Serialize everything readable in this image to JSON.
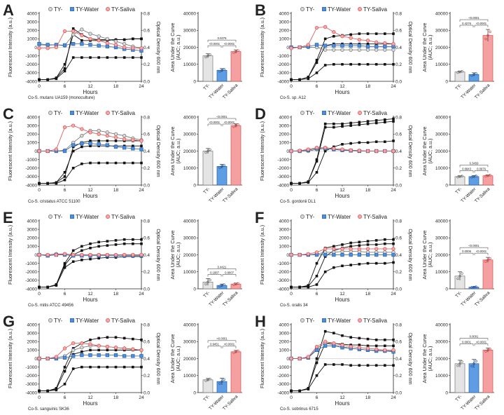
{
  "legend": [
    "TY-",
    "TY-Water",
    "TY-Saliva"
  ],
  "colors": {
    "ty_minus_fill": "#d9d9d9",
    "ty_minus_stroke": "#6b6b6b",
    "water_fill": "#4a8fe0",
    "water_stroke": "#2b5fa6",
    "saliva_fill": "#f5a6a6",
    "saliva_stroke": "#d65050",
    "od": "#111111",
    "bar_ty_minus": "#e4e4e4",
    "bar_water": "#5e9de3",
    "bar_saliva": "#f4a0a0"
  },
  "axes": {
    "left_ylabel": "Fluorescent Intensity (a.u.)",
    "right_ylabel": "Optical Density 600 nm",
    "xlabel": "Hours",
    "bar_ylabel_line1": "Area Under the Curve",
    "bar_ylabel_line2": "(AUC; a.u.)",
    "left_ticks": [
      "4000",
      "3000",
      "2000",
      "1000",
      "0",
      "-1000",
      "-2000",
      "-3000",
      "-4000"
    ],
    "right_ticks": [
      "0.8",
      "0.6",
      "0.4",
      "0.2",
      "0.0"
    ],
    "x_ticks": [
      "0",
      "6",
      "12",
      "18",
      "24"
    ],
    "bar_ticks": [
      "40000",
      "30000",
      "20000",
      "10000",
      "0"
    ],
    "bar_categories": [
      "TY-",
      "TY-Water",
      "TY-Saliva"
    ]
  },
  "chart_data": [
    {
      "panel": "A",
      "caption": "Co-S. mutans UA159 (monoculture)",
      "type": "line+bar",
      "hours": [
        0,
        2,
        4,
        6,
        8,
        10,
        12,
        14,
        16,
        18,
        20,
        22,
        24
      ],
      "fluorescence": {
        "TY-": [
          300,
          250,
          300,
          200,
          1500,
          2100,
          1600,
          1300,
          1000,
          700,
          400,
          100,
          -100
        ],
        "TY-Water": [
          400,
          300,
          300,
          250,
          400,
          400,
          300,
          200,
          100,
          0,
          -200,
          -300,
          -400
        ],
        "TY-Saliva": [
          -100,
          -100,
          0,
          1900,
          1900,
          1400,
          1000,
          800,
          500,
          300,
          0,
          -100,
          -100
        ]
      },
      "od600": {
        "TY-": [
          0.02,
          0.02,
          0.04,
          0.15,
          0.62,
          0.55,
          0.5,
          0.49,
          0.49,
          0.49,
          0.49,
          0.5,
          0.5
        ],
        "TY-Water": [
          0.02,
          0.02,
          0.03,
          0.12,
          0.28,
          0.28,
          0.28,
          0.28,
          0.28,
          0.28,
          0.28,
          0.28,
          0.28
        ],
        "TY-Saliva": [
          0.02,
          0.02,
          0.04,
          0.2,
          0.55,
          0.48,
          0.48,
          0.48,
          0.48,
          0.49,
          0.49,
          0.5,
          0.5
        ]
      },
      "auc": [
        15000,
        6500,
        17500
      ],
      "auc_sd": [
        1200,
        1000,
        1000
      ],
      "pvalues": {
        "ty_vs_water": "<0.0001",
        "water_vs_saliva": "<0.0001",
        "ty_vs_saliva": "0.0376"
      }
    },
    {
      "panel": "B",
      "caption": "Co-S. sp. A12",
      "type": "line+bar",
      "hours": [
        0,
        2,
        4,
        6,
        8,
        10,
        12,
        14,
        16,
        18,
        20,
        22,
        24
      ],
      "fluorescence": {
        "TY-": [
          0,
          0,
          0,
          0,
          -300,
          -300,
          -300,
          -300,
          -300,
          -300,
          -300,
          -300,
          -300
        ],
        "TY-Water": [
          0,
          0,
          100,
          300,
          200,
          200,
          200,
          200,
          200,
          100,
          100,
          100,
          100
        ],
        "TY-Saliva": [
          -100,
          0,
          300,
          2300,
          2400,
          1800,
          1300,
          1100,
          900,
          800,
          600,
          500,
          400
        ]
      },
      "od600": {
        "TY-": [
          0.02,
          0.02,
          0.05,
          0.25,
          0.5,
          0.53,
          0.54,
          0.55,
          0.56,
          0.56,
          0.56,
          0.56,
          0.56
        ],
        "TY-Water": [
          0.02,
          0.02,
          0.05,
          0.22,
          0.42,
          0.44,
          0.44,
          0.44,
          0.44,
          0.44,
          0.44,
          0.44,
          0.44
        ],
        "TY-Saliva": [
          0.02,
          0.02,
          0.03,
          0.1,
          0.19,
          0.2,
          0.2,
          0.2,
          0.2,
          0.2,
          0.2,
          0.2,
          0.2
        ]
      },
      "auc": [
        5500,
        4000,
        27000
      ],
      "auc_sd": [
        600,
        1000,
        3500
      ],
      "pvalues": {
        "ty_vs_water": "0.4276",
        "water_vs_saliva": "<0.0001",
        "ty_vs_saliva": "<0.0001"
      }
    },
    {
      "panel": "C",
      "caption": "Co-S. cristatus ATCC 51100",
      "type": "line+bar",
      "hours": [
        0,
        2,
        4,
        6,
        8,
        10,
        12,
        14,
        16,
        18,
        20,
        22,
        24
      ],
      "fluorescence": {
        "TY-": [
          0,
          0,
          0,
          100,
          1000,
          1800,
          2400,
          2400,
          2200,
          2000,
          1800,
          1500,
          1300
        ],
        "TY-Water": [
          0,
          0,
          0,
          0,
          700,
          900,
          900,
          800,
          700,
          500,
          400,
          300,
          200
        ],
        "TY-Saliva": [
          0,
          0,
          200,
          2800,
          3000,
          2600,
          2200,
          2000,
          1800,
          1600,
          1400,
          1300,
          1200
        ]
      },
      "od600": {
        "TY-": [
          0.02,
          0.02,
          0.03,
          0.1,
          0.45,
          0.5,
          0.52,
          0.52,
          0.52,
          0.52,
          0.52,
          0.52,
          0.52
        ],
        "TY-Water": [
          0.02,
          0.02,
          0.03,
          0.15,
          0.4,
          0.45,
          0.46,
          0.46,
          0.46,
          0.46,
          0.46,
          0.46,
          0.46
        ],
        "TY-Saliva": [
          0.02,
          0.02,
          0.02,
          0.06,
          0.2,
          0.25,
          0.26,
          0.26,
          0.26,
          0.26,
          0.26,
          0.26,
          0.26
        ]
      },
      "auc": [
        20000,
        11000,
        35000
      ],
      "auc_sd": [
        1500,
        1200,
        1000
      ],
      "pvalues": {
        "ty_vs_water": "<0.0001",
        "water_vs_saliva": "<0.0001",
        "ty_vs_saliva": "<0.0001"
      }
    },
    {
      "panel": "D",
      "caption": "Co-S. gordonii DL1",
      "type": "line+bar",
      "hours": [
        0,
        2,
        4,
        6,
        8,
        10,
        12,
        14,
        16,
        18,
        20,
        22,
        24
      ],
      "fluorescence": {
        "TY-": [
          0,
          0,
          0,
          200,
          300,
          200,
          100,
          100,
          50,
          0,
          0,
          0,
          0
        ],
        "TY-Water": [
          0,
          0,
          100,
          300,
          300,
          200,
          100,
          50,
          0,
          0,
          0,
          0,
          0
        ],
        "TY-Saliva": [
          0,
          50,
          200,
          400,
          400,
          300,
          200,
          100,
          50,
          0,
          0,
          0,
          0
        ]
      },
      "od600": {
        "TY-": [
          0.02,
          0.02,
          0.04,
          0.3,
          0.72,
          0.72,
          0.72,
          0.73,
          0.74,
          0.75,
          0.76,
          0.77,
          0.78
        ],
        "TY-Water": [
          0.02,
          0.02,
          0.04,
          0.28,
          0.68,
          0.68,
          0.69,
          0.7,
          0.71,
          0.72,
          0.73,
          0.74,
          0.75
        ],
        "TY-Saliva": [
          0.02,
          0.02,
          0.03,
          0.15,
          0.4,
          0.45,
          0.48,
          0.49,
          0.5,
          0.5,
          0.51,
          0.51,
          0.52
        ]
      },
      "auc": [
        5000,
        5000,
        5500
      ],
      "auc_sd": [
        500,
        600,
        500
      ],
      "pvalues": {
        "ty_vs_water": "0.6843",
        "water_vs_saliva": "0.0976",
        "ty_vs_saliva": "0.3459"
      }
    },
    {
      "panel": "E",
      "caption": "Co-S. mitis ATCC 49456",
      "type": "line+bar",
      "hours": [
        0,
        2,
        4,
        6,
        8,
        10,
        12,
        14,
        16,
        18,
        20,
        22,
        24
      ],
      "fluorescence": {
        "TY-": [
          0,
          0,
          100,
          100,
          0,
          0,
          0,
          0,
          0,
          0,
          0,
          0,
          0
        ],
        "TY-Water": [
          0,
          -100,
          0,
          0,
          -100,
          -100,
          -100,
          -100,
          -100,
          -100,
          -100,
          -100,
          -100
        ],
        "TY-Saliva": [
          0,
          0,
          0,
          100,
          0,
          0,
          0,
          0,
          0,
          0,
          0,
          0,
          0
        ]
      },
      "od600": {
        "TY-": [
          0.02,
          0.02,
          0.05,
          0.3,
          0.45,
          0.5,
          0.53,
          0.55,
          0.56,
          0.57,
          0.58,
          0.58,
          0.58
        ],
        "TY-Water": [
          0.02,
          0.02,
          0.05,
          0.28,
          0.4,
          0.45,
          0.48,
          0.5,
          0.51,
          0.52,
          0.53,
          0.53,
          0.53
        ],
        "TY-Saliva": [
          0.02,
          0.02,
          0.04,
          0.25,
          0.32,
          0.34,
          0.35,
          0.36,
          0.37,
          0.37,
          0.38,
          0.38,
          0.38
        ]
      },
      "auc": [
        4000,
        2000,
        2800
      ],
      "auc_sd": [
        2000,
        800,
        600
      ],
      "pvalues": {
        "ty_vs_water": "0.1887",
        "water_vs_saliva": "0.8007",
        "ty_vs_saliva": "0.4421"
      }
    },
    {
      "panel": "F",
      "caption": "Co-S. oralis 34",
      "type": "line+bar",
      "hours": [
        0,
        2,
        4,
        6,
        8,
        10,
        12,
        14,
        16,
        18,
        20,
        22,
        24
      ],
      "fluorescence": {
        "TY-": [
          0,
          0,
          0,
          100,
          300,
          300,
          400,
          400,
          400,
          300,
          300,
          300,
          300
        ],
        "TY-Water": [
          0,
          0,
          0,
          0,
          0,
          0,
          0,
          0,
          0,
          0,
          0,
          0,
          0
        ],
        "TY-Saliva": [
          0,
          0,
          100,
          300,
          700,
          700,
          700,
          700,
          700,
          700,
          700,
          700,
          700
        ]
      },
      "od600": {
        "TY-": [
          0.02,
          0.02,
          0.04,
          0.3,
          0.48,
          0.5,
          0.52,
          0.54,
          0.55,
          0.56,
          0.57,
          0.58,
          0.58
        ],
        "TY-Water": [
          0.02,
          0.02,
          0.03,
          0.15,
          0.38,
          0.45,
          0.48,
          0.5,
          0.51,
          0.52,
          0.52,
          0.53,
          0.53
        ],
        "TY-Saliva": [
          0.02,
          0.02,
          0.02,
          0.05,
          0.2,
          0.25,
          0.27,
          0.28,
          0.29,
          0.3,
          0.3,
          0.3,
          0.31
        ]
      },
      "auc": [
        7500,
        1000,
        17000
      ],
      "auc_sd": [
        2500,
        300,
        1500
      ],
      "pvalues": {
        "ty_vs_water": "0.0006",
        "water_vs_saliva": "<0.0001",
        "ty_vs_saliva": "<0.0001"
      }
    },
    {
      "panel": "G",
      "caption": "Co-S. sanguinis SK36",
      "type": "line+bar",
      "hours": [
        0,
        2,
        4,
        6,
        8,
        10,
        12,
        14,
        16,
        18,
        20,
        22,
        24
      ],
      "fluorescence": {
        "TY-": [
          0,
          0,
          100,
          300,
          1000,
          1300,
          1500,
          1500,
          1400,
          1300,
          1200,
          1100,
          1000
        ],
        "TY-Water": [
          0,
          0,
          0,
          100,
          300,
          400,
          400,
          400,
          400,
          400,
          300,
          300,
          300
        ],
        "TY-Saliva": [
          0,
          0,
          200,
          1200,
          1800,
          1800,
          1700,
          1500,
          1400,
          1300,
          1200,
          1100,
          1000
        ]
      },
      "od600": {
        "TY-": [
          0.02,
          0.02,
          0.05,
          0.3,
          0.52,
          0.58,
          0.62,
          0.64,
          0.65,
          0.65,
          0.64,
          0.63,
          0.62
        ],
        "TY-Water": [
          0.02,
          0.02,
          0.04,
          0.25,
          0.45,
          0.48,
          0.5,
          0.5,
          0.5,
          0.5,
          0.5,
          0.5,
          0.5
        ],
        "TY-Saliva": [
          0.02,
          0.02,
          0.03,
          0.1,
          0.28,
          0.3,
          0.3,
          0.3,
          0.3,
          0.3,
          0.3,
          0.3,
          0.3
        ]
      },
      "auc": [
        7500,
        6500,
        24000
      ],
      "auc_sd": [
        800,
        2000,
        800
      ],
      "pvalues": {
        "ty_vs_water": "0.9451",
        "water_vs_saliva": "<0.0001",
        "ty_vs_saliva": "<0.0001"
      }
    },
    {
      "panel": "H",
      "caption": "Co-S. sobrinus 6715",
      "type": "line+bar",
      "hours": [
        0,
        2,
        4,
        6,
        8,
        10,
        12,
        14,
        16,
        18,
        20,
        22,
        24
      ],
      "fluorescence": {
        "TY-": [
          0,
          0,
          100,
          1200,
          1800,
          1600,
          1400,
          1200,
          1100,
          1000,
          1000,
          900,
          900
        ],
        "TY-Water": [
          0,
          0,
          100,
          1000,
          1500,
          1500,
          1300,
          1200,
          1100,
          1000,
          900,
          900,
          800
        ],
        "TY-Saliva": [
          0,
          0,
          200,
          1400,
          2000,
          1800,
          1600,
          1400,
          1300,
          1200,
          1100,
          1000,
          1000
        ]
      },
      "od600": {
        "TY-": [
          0.02,
          0.02,
          0.05,
          0.4,
          0.72,
          0.7,
          0.67,
          0.65,
          0.64,
          0.63,
          0.62,
          0.62,
          0.62
        ],
        "TY-Water": [
          0.02,
          0.02,
          0.05,
          0.35,
          0.58,
          0.58,
          0.57,
          0.56,
          0.56,
          0.55,
          0.55,
          0.55,
          0.55
        ],
        "TY-Saliva": [
          0.02,
          0.02,
          0.04,
          0.2,
          0.33,
          0.33,
          0.33,
          0.32,
          0.32,
          0.32,
          0.32,
          0.32,
          0.32
        ]
      },
      "auc": [
        17000,
        17000,
        25000
      ],
      "auc_sd": [
        2000,
        2500,
        1200
      ],
      "pvalues": {
        "ty_vs_water": "0.0001",
        "water_vs_saliva": "<0.0001",
        "ty_vs_saliva": "0.0001"
      }
    }
  ]
}
